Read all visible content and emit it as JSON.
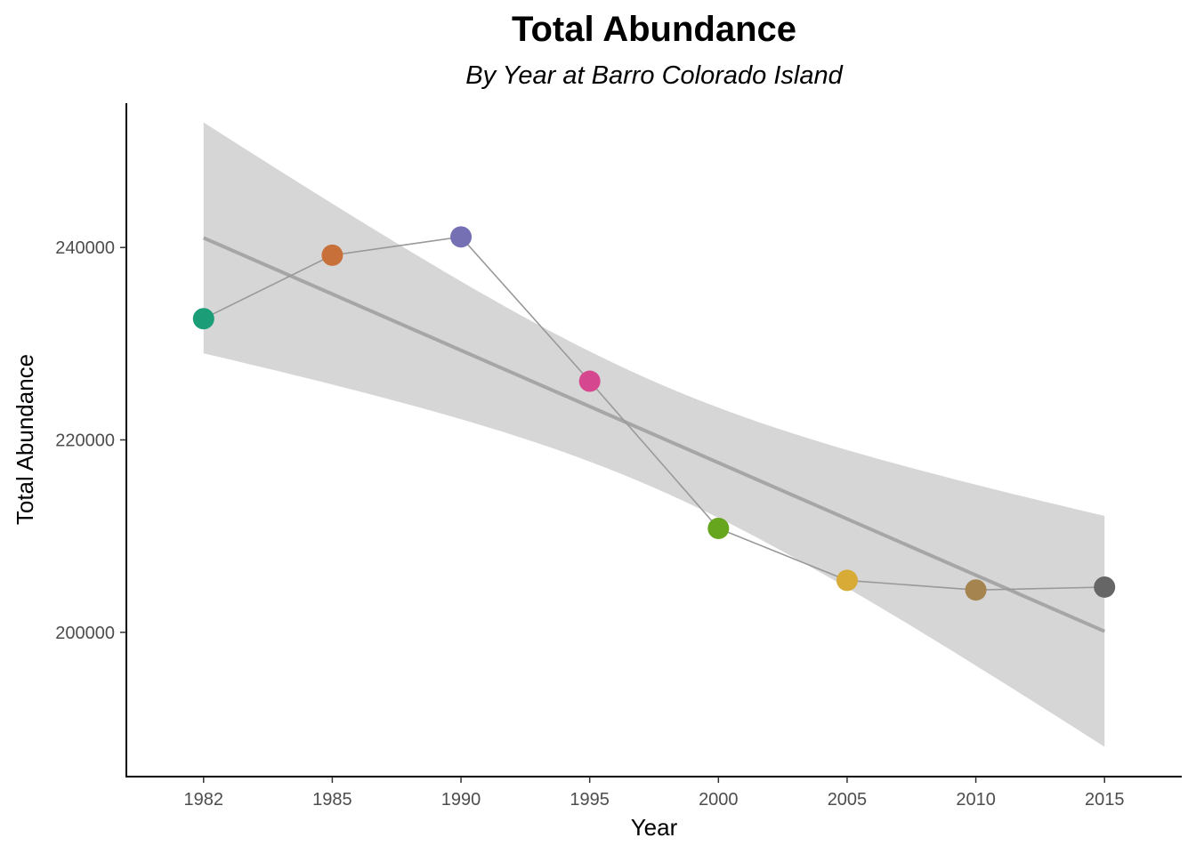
{
  "chart_data": {
    "type": "line",
    "title": "Total Abundance",
    "subtitle": "By Year at Barro Colorado Island",
    "xlabel": "Year",
    "ylabel": "Total Abundance",
    "x_tick_labels": [
      "1982",
      "1985",
      "1990",
      "1995",
      "2000",
      "2005",
      "2010",
      "2015"
    ],
    "y_ticks": [
      200000,
      220000,
      240000
    ],
    "y_tick_labels": [
      "200000",
      "220000",
      "240000"
    ],
    "xlim": [
      1980.5,
      2016.5
    ],
    "ylim": [
      185000,
      255000
    ],
    "grid": false,
    "series": [
      {
        "x": [
          1982,
          1985,
          1990,
          1995,
          2000,
          2005,
          2010,
          2015
        ],
        "y": [
          232600,
          239200,
          241100,
          226100,
          210800,
          205400,
          204400,
          204700
        ],
        "point_colors": [
          "#1b9e77",
          "#c8703a",
          "#7570b3",
          "#d5478f",
          "#66a61e",
          "#d8ab37",
          "#a6844f",
          "#666666"
        ],
        "line_color": "#999999"
      }
    ],
    "trend": {
      "x": [
        1982,
        2015
      ],
      "y": [
        241000,
        200100
      ],
      "ci_lower_at_x": [
        229100,
        188100
      ],
      "ci_upper_at_x": [
        253000,
        212100
      ],
      "line_color": "#a6a6a6",
      "band_color": "#d6d6d6"
    }
  }
}
